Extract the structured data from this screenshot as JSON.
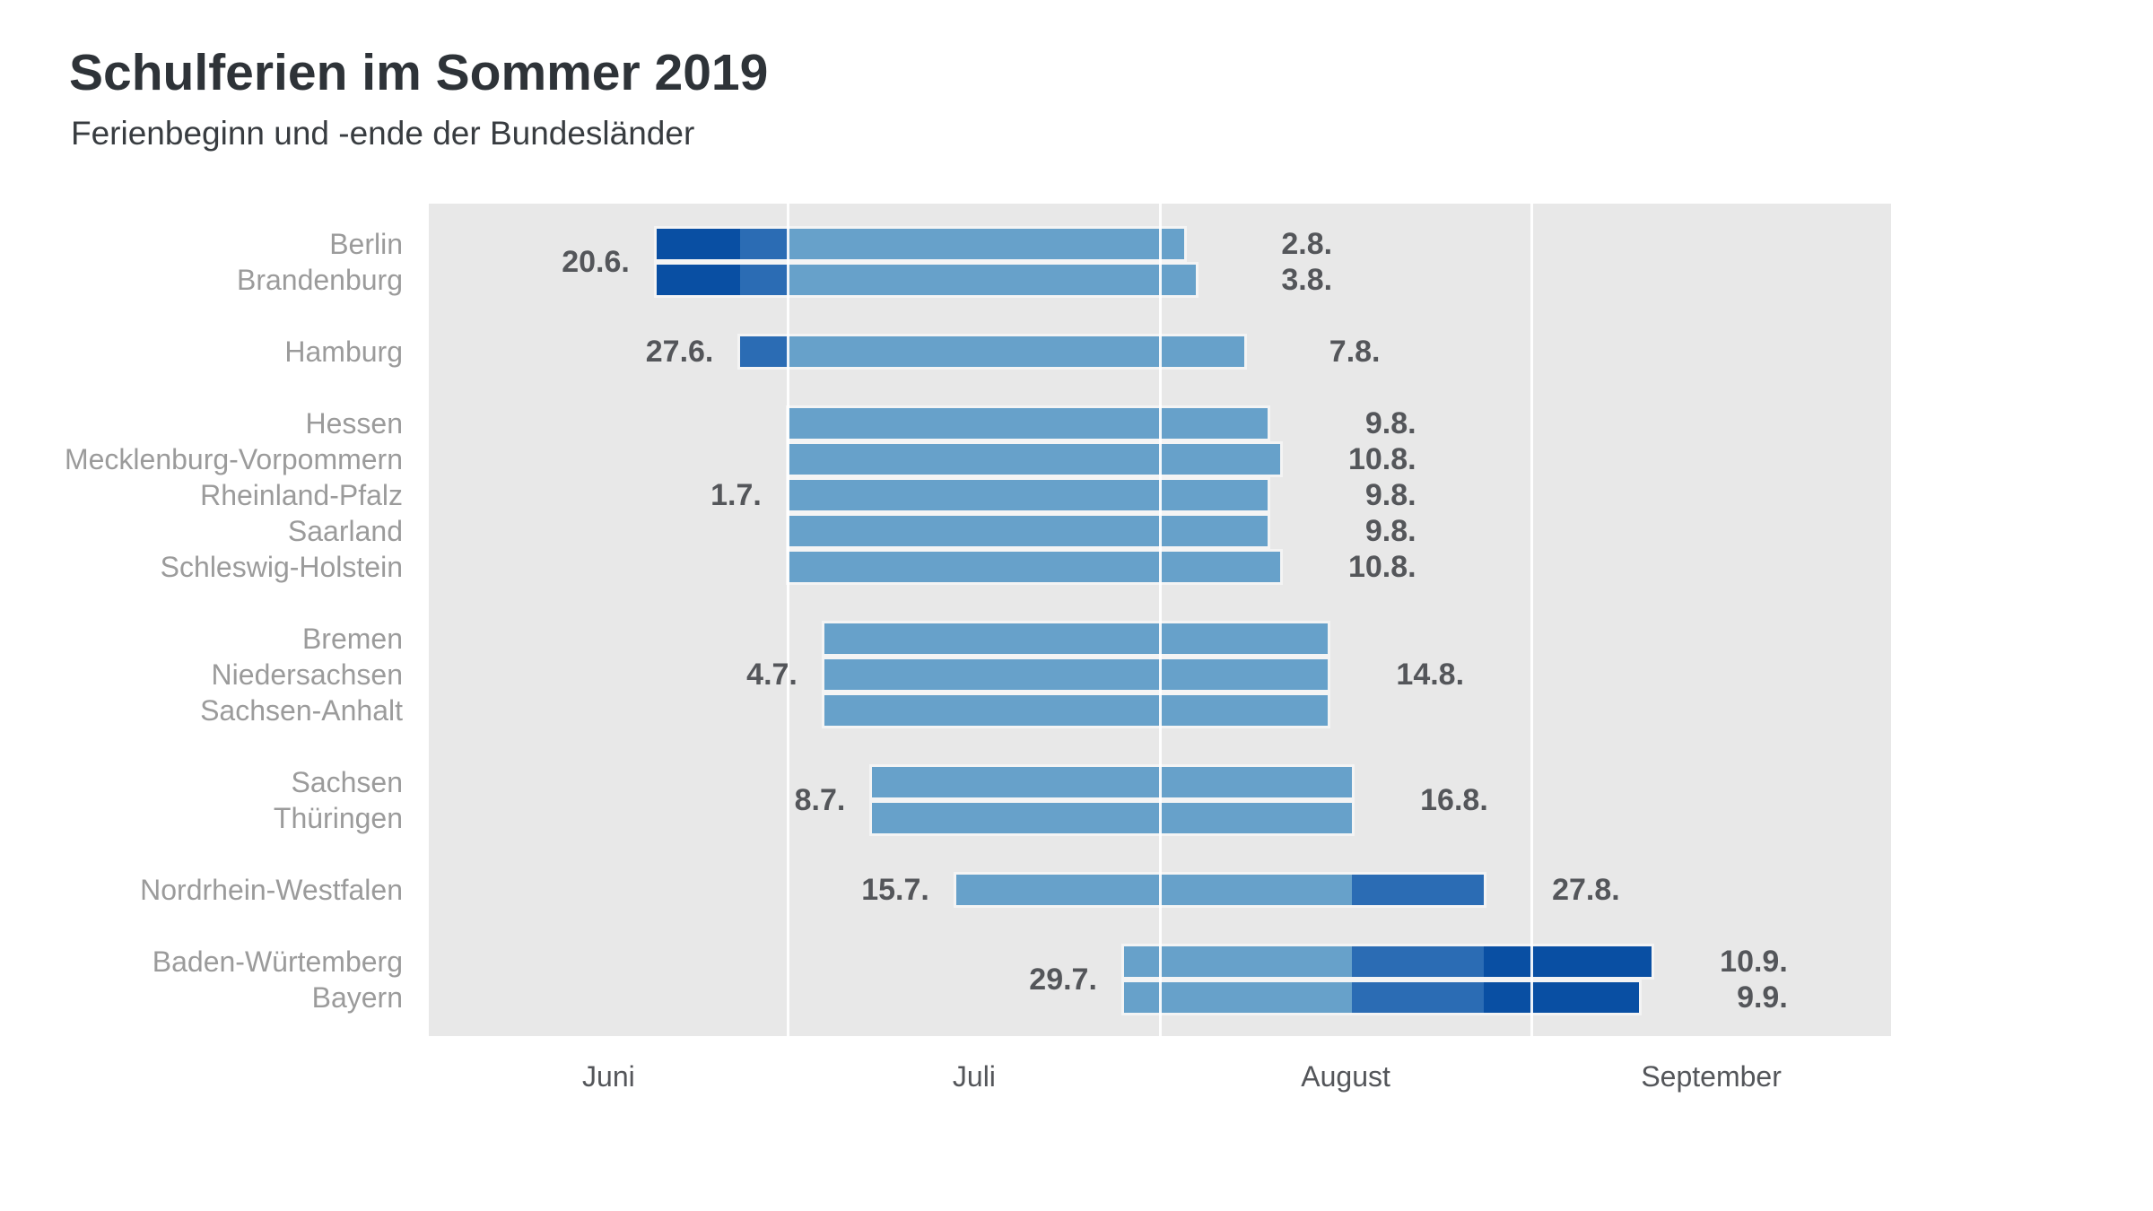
{
  "header": {
    "title": "Schulferien im Sommer 2019",
    "subtitle": "Ferienbeginn und -ende der Bundesländer"
  },
  "chart_data": {
    "type": "bar",
    "subtype": "date-range-gantt",
    "title": "Schulferien im Sommer 2019",
    "subtitle": "Ferienbeginn und -ende der Bundesländer",
    "grid": "white vertical lines at month starts",
    "colors": {
      "bar_light": "#67a1ca",
      "bar_medium": "#2b6cb4",
      "bar_dark": "#094fa3",
      "plot_background": "#e8e8e8",
      "page_background": "#ffffff",
      "state_label": "#9b9b9b",
      "date_label": "#54565a"
    },
    "x_axis": {
      "months": [
        {
          "label": "Juni",
          "month_number": 6,
          "days": 30
        },
        {
          "label": "Juli",
          "month_number": 7,
          "days": 31
        },
        {
          "label": "August",
          "month_number": 8,
          "days": 31
        },
        {
          "label": "September",
          "month_number": 9,
          "days": 30
        }
      ]
    },
    "groups": [
      {
        "start_label": "20.6.",
        "bars": [
          {
            "state": "Berlin",
            "start": "20.6.",
            "end": "2.8.",
            "end_label": "2.8.",
            "segments": [
              {
                "from": "20.6.",
                "to": "26.6.",
                "color": "dark"
              },
              {
                "from": "27.6.",
                "to": "30.6.",
                "color": "medium"
              },
              {
                "from": "1.7.",
                "to": "2.8.",
                "color": "light"
              }
            ]
          },
          {
            "state": "Brandenburg",
            "start": "20.6.",
            "end": "3.8.",
            "end_label": "3.8.",
            "segments": [
              {
                "from": "20.6.",
                "to": "26.6.",
                "color": "dark"
              },
              {
                "from": "27.6.",
                "to": "30.6.",
                "color": "medium"
              },
              {
                "from": "1.7.",
                "to": "3.8.",
                "color": "light"
              }
            ]
          }
        ]
      },
      {
        "start_label": "27.6.",
        "bars": [
          {
            "state": "Hamburg",
            "start": "27.6.",
            "end": "7.8.",
            "end_label": "7.8.",
            "segments": [
              {
                "from": "27.6.",
                "to": "30.6.",
                "color": "medium"
              },
              {
                "from": "1.7.",
                "to": "7.8.",
                "color": "light"
              }
            ]
          }
        ]
      },
      {
        "start_label": "1.7.",
        "bars": [
          {
            "state": "Hessen",
            "start": "1.7.",
            "end": "9.8.",
            "end_label": "9.8.",
            "segments": [
              {
                "from": "1.7.",
                "to": "9.8.",
                "color": "light"
              }
            ]
          },
          {
            "state": "Mecklenburg-Vorpommern",
            "start": "1.7.",
            "end": "10.8.",
            "end_label": "10.8.",
            "segments": [
              {
                "from": "1.7.",
                "to": "10.8.",
                "color": "light"
              }
            ]
          },
          {
            "state": "Rheinland-Pfalz",
            "start": "1.7.",
            "end": "9.8.",
            "end_label": "9.8.",
            "segments": [
              {
                "from": "1.7.",
                "to": "9.8.",
                "color": "light"
              }
            ]
          },
          {
            "state": "Saarland",
            "start": "1.7.",
            "end": "9.8.",
            "end_label": "9.8.",
            "segments": [
              {
                "from": "1.7.",
                "to": "9.8.",
                "color": "light"
              }
            ]
          },
          {
            "state": "Schleswig-Holstein",
            "start": "1.7.",
            "end": "10.8.",
            "end_label": "10.8.",
            "segments": [
              {
                "from": "1.7.",
                "to": "10.8.",
                "color": "light"
              }
            ]
          }
        ]
      },
      {
        "start_label": "4.7.",
        "shared_end_label": "14.8.",
        "bars": [
          {
            "state": "Bremen",
            "start": "4.7.",
            "end": "14.8.",
            "segments": [
              {
                "from": "4.7.",
                "to": "14.8.",
                "color": "light"
              }
            ]
          },
          {
            "state": "Niedersachsen",
            "start": "4.7.",
            "end": "14.8.",
            "segments": [
              {
                "from": "4.7.",
                "to": "14.8.",
                "color": "light"
              }
            ]
          },
          {
            "state": "Sachsen-Anhalt",
            "start": "4.7.",
            "end": "14.8.",
            "segments": [
              {
                "from": "4.7.",
                "to": "14.8.",
                "color": "light"
              }
            ]
          }
        ]
      },
      {
        "start_label": "8.7.",
        "shared_end_label": "16.8.",
        "bars": [
          {
            "state": "Sachsen",
            "start": "8.7.",
            "end": "16.8.",
            "segments": [
              {
                "from": "8.7.",
                "to": "16.8.",
                "color": "light"
              }
            ]
          },
          {
            "state": "Thüringen",
            "start": "8.7.",
            "end": "16.8.",
            "segments": [
              {
                "from": "8.7.",
                "to": "16.8.",
                "color": "light"
              }
            ]
          }
        ]
      },
      {
        "start_label": "15.7.",
        "bars": [
          {
            "state": "Nordrhein-Westfalen",
            "start": "15.7.",
            "end": "27.8.",
            "end_label": "27.8.",
            "segments": [
              {
                "from": "15.7.",
                "to": "16.8.",
                "color": "light"
              },
              {
                "from": "17.8.",
                "to": "27.8.",
                "color": "medium"
              }
            ]
          }
        ]
      },
      {
        "start_label": "29.7.",
        "bars": [
          {
            "state": "Baden-Würtemberg",
            "start": "29.7.",
            "end": "10.9.",
            "end_label": "10.9.",
            "segments": [
              {
                "from": "29.7.",
                "to": "16.8.",
                "color": "light"
              },
              {
                "from": "17.8.",
                "to": "27.8.",
                "color": "medium"
              },
              {
                "from": "28.8.",
                "to": "10.9.",
                "color": "dark"
              }
            ]
          },
          {
            "state": "Bayern",
            "start": "29.7.",
            "end": "9.9.",
            "end_label": "9.9.",
            "segments": [
              {
                "from": "29.7.",
                "to": "16.8.",
                "color": "light"
              },
              {
                "from": "17.8.",
                "to": "27.8.",
                "color": "medium"
              },
              {
                "from": "28.8.",
                "to": "9.9.",
                "color": "dark"
              }
            ]
          }
        ]
      }
    ]
  }
}
